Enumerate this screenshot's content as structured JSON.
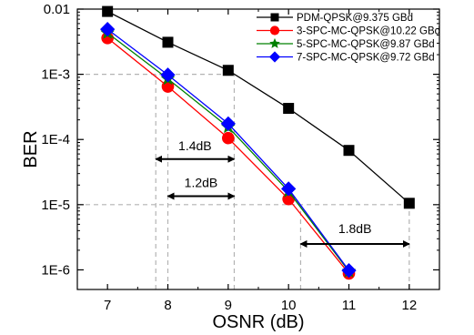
{
  "chart_data": {
    "type": "line",
    "title": "",
    "xlabel": "OSNR (dB)",
    "ylabel": "BER",
    "xlim": [
      6.5,
      12.5
    ],
    "ylim": [
      5e-07,
      0.01
    ],
    "yscale": "log",
    "x_ticks": [
      7,
      8,
      9,
      10,
      11,
      12
    ],
    "x_tick_labels": [
      "7",
      "8",
      "9",
      "10",
      "11",
      "12"
    ],
    "y_ticks": [
      1e-06,
      1e-05,
      0.0001,
      0.001,
      0.01
    ],
    "y_tick_labels": [
      "1E-6",
      "1E-5",
      "1E-4",
      "1E-3",
      "0.01"
    ],
    "grid": false,
    "legend_position": "top-right",
    "series": [
      {
        "name": "PDM-QPSK@9.375 GBd",
        "color": "#000000",
        "marker": "square",
        "x": [
          7,
          8,
          9,
          10,
          11,
          12
        ],
        "y": [
          0.0092,
          0.0031,
          0.00115,
          0.0003,
          6.8e-05,
          1.05e-05
        ]
      },
      {
        "name": "3-SPC-MC-QPSK@10.22 GBd",
        "color": "#ff0000",
        "marker": "circle",
        "x": [
          7,
          8,
          9,
          10,
          11
        ],
        "y": [
          0.0036,
          0.00065,
          0.000105,
          1.22e-05,
          8.8e-07
        ]
      },
      {
        "name": "5-SPC-MC-QPSK@9.87 GBd",
        "color": "#008000",
        "marker": "star",
        "x": [
          7,
          8,
          9,
          10,
          11
        ],
        "y": [
          0.0043,
          0.00085,
          0.000155,
          1.6e-05,
          9.5e-07
        ]
      },
      {
        "name": "7-SPC-MC-QPSK@9.72 GBd",
        "color": "#0000ff",
        "marker": "diamond",
        "x": [
          7,
          8,
          9,
          10,
          11
        ],
        "y": [
          0.0049,
          0.00098,
          0.000175,
          1.75e-05,
          9.8e-07
        ]
      }
    ],
    "reference_lines": [
      {
        "orientation": "horizontal",
        "y": 0.001,
        "x_from": 6.5,
        "x_to": 9.1
      },
      {
        "orientation": "horizontal",
        "y": 1e-05,
        "x_from": 6.5,
        "x_to": 12
      }
    ],
    "reference_vlines": [
      {
        "x": 7.8,
        "y_from": 5e-07,
        "y_to": 0.001
      },
      {
        "x": 8.0,
        "y_from": 5e-07,
        "y_to": 0.001
      },
      {
        "x": 9.1,
        "y_from": 5e-07,
        "y_to": 0.001
      },
      {
        "x": 10.2,
        "y_from": 5e-07,
        "y_to": 1e-05
      },
      {
        "x": 12.0,
        "y_from": 5e-07,
        "y_to": 1e-05
      }
    ],
    "annotations": [
      {
        "label": "1.4dB",
        "x_from": 7.8,
        "x_to": 9.1,
        "y": 5e-05,
        "text_y": 8e-05
      },
      {
        "label": "1.2dB",
        "x_from": 8.0,
        "x_to": 9.1,
        "y": 1.35e-05,
        "text_y": 2.2e-05
      },
      {
        "label": "1.8dB",
        "x_from": 10.2,
        "x_to": 12.0,
        "y": 2.5e-06,
        "text_y": 4.3e-06
      }
    ]
  }
}
